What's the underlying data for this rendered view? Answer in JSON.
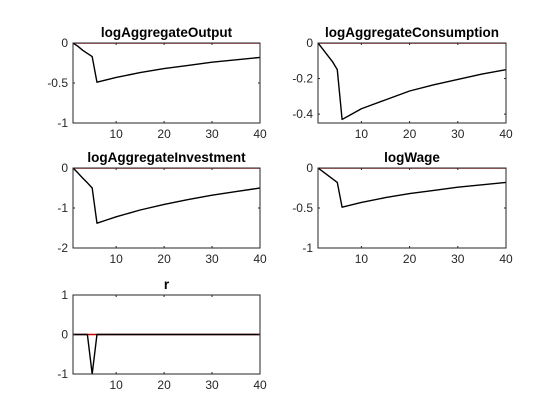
{
  "colors": {
    "response": "#000000",
    "zero": "#cc0000",
    "axes": "#262626"
  },
  "chart_data": [
    {
      "type": "line",
      "title": "logAggregateOutput",
      "xlim": [
        1,
        40
      ],
      "ylim": [
        -1,
        0
      ],
      "xticks": [
        10,
        20,
        30,
        40
      ],
      "xtick_labels": [
        "10",
        "20",
        "30",
        "40"
      ],
      "yticks": [
        0,
        -0.5,
        -1
      ],
      "ytick_labels": [
        "0",
        "-0.5",
        "-1"
      ],
      "grid": false,
      "series": [
        {
          "role": "response",
          "color": "#000000",
          "x": [
            1,
            2,
            3,
            4,
            5,
            6,
            8,
            10,
            15,
            20,
            25,
            30,
            35,
            40
          ],
          "y": [
            0,
            -0.04,
            -0.09,
            -0.13,
            -0.17,
            -0.49,
            -0.46,
            -0.43,
            -0.37,
            -0.32,
            -0.28,
            -0.24,
            -0.21,
            -0.18
          ]
        },
        {
          "role": "zero",
          "color": "#cc0000",
          "x": [
            1,
            40
          ],
          "y": [
            0,
            0
          ]
        }
      ]
    },
    {
      "type": "line",
      "title": "logAggregateConsumption",
      "xlim": [
        1,
        40
      ],
      "ylim": [
        -0.45,
        0
      ],
      "xticks": [
        10,
        20,
        30,
        40
      ],
      "xtick_labels": [
        "10",
        "20",
        "30",
        "40"
      ],
      "yticks": [
        0,
        -0.2,
        -0.4
      ],
      "ytick_labels": [
        "0",
        "-0.2",
        "-0.4"
      ],
      "grid": false,
      "series": [
        {
          "role": "response",
          "color": "#000000",
          "x": [
            1,
            2,
            3,
            4,
            5,
            6,
            8,
            10,
            15,
            20,
            25,
            30,
            35,
            40
          ],
          "y": [
            0,
            -0.035,
            -0.07,
            -0.105,
            -0.15,
            -0.43,
            -0.4,
            -0.37,
            -0.32,
            -0.27,
            -0.235,
            -0.205,
            -0.175,
            -0.15
          ]
        },
        {
          "role": "zero",
          "color": "#cc0000",
          "x": [
            1,
            40
          ],
          "y": [
            0,
            0
          ]
        }
      ]
    },
    {
      "type": "line",
      "title": "logAggregateInvestment",
      "xlim": [
        1,
        40
      ],
      "ylim": [
        -2,
        0
      ],
      "xticks": [
        10,
        20,
        30,
        40
      ],
      "xtick_labels": [
        "10",
        "20",
        "30",
        "40"
      ],
      "yticks": [
        0,
        -1,
        -2
      ],
      "ytick_labels": [
        "0",
        "-1",
        "-2"
      ],
      "grid": false,
      "series": [
        {
          "role": "response",
          "color": "#000000",
          "x": [
            1,
            2,
            3,
            4,
            5,
            6,
            8,
            10,
            15,
            20,
            25,
            30,
            35,
            40
          ],
          "y": [
            0,
            -0.12,
            -0.25,
            -0.37,
            -0.5,
            -1.38,
            -1.3,
            -1.22,
            -1.05,
            -0.91,
            -0.79,
            -0.68,
            -0.59,
            -0.5
          ]
        },
        {
          "role": "zero",
          "color": "#cc0000",
          "x": [
            1,
            40
          ],
          "y": [
            0,
            0
          ]
        }
      ]
    },
    {
      "type": "line",
      "title": "logWage",
      "xlim": [
        1,
        40
      ],
      "ylim": [
        -1,
        0
      ],
      "xticks": [
        10,
        20,
        30,
        40
      ],
      "xtick_labels": [
        "10",
        "20",
        "30",
        "40"
      ],
      "yticks": [
        0,
        -0.5,
        -1
      ],
      "ytick_labels": [
        "0",
        "-0.5",
        "-1"
      ],
      "grid": false,
      "series": [
        {
          "role": "response",
          "color": "#000000",
          "x": [
            1,
            2,
            3,
            4,
            5,
            6,
            8,
            10,
            15,
            20,
            25,
            30,
            35,
            40
          ],
          "y": [
            0,
            -0.045,
            -0.09,
            -0.135,
            -0.18,
            -0.49,
            -0.46,
            -0.43,
            -0.37,
            -0.32,
            -0.28,
            -0.24,
            -0.21,
            -0.18
          ]
        },
        {
          "role": "zero",
          "color": "#cc0000",
          "x": [
            1,
            40
          ],
          "y": [
            0,
            0
          ]
        }
      ]
    },
    {
      "type": "line",
      "title": "r",
      "xlim": [
        1,
        40
      ],
      "ylim": [
        -1,
        1
      ],
      "xticks": [
        10,
        20,
        30,
        40
      ],
      "xtick_labels": [
        "10",
        "20",
        "30",
        "40"
      ],
      "yticks": [
        1,
        0,
        -1
      ],
      "ytick_labels": [
        "1",
        "0",
        "-1"
      ],
      "grid": false,
      "series": [
        {
          "role": "response",
          "color": "#000000",
          "x": [
            1,
            2,
            3,
            4,
            5,
            6,
            7,
            8,
            10,
            15,
            20,
            25,
            30,
            35,
            40
          ],
          "y": [
            0,
            0,
            0,
            0,
            -1,
            0,
            0,
            0,
            0,
            0,
            0,
            0,
            0,
            0,
            0
          ]
        },
        {
          "role": "zero",
          "color": "#cc0000",
          "x": [
            1,
            40
          ],
          "y": [
            0,
            0
          ]
        }
      ]
    }
  ]
}
